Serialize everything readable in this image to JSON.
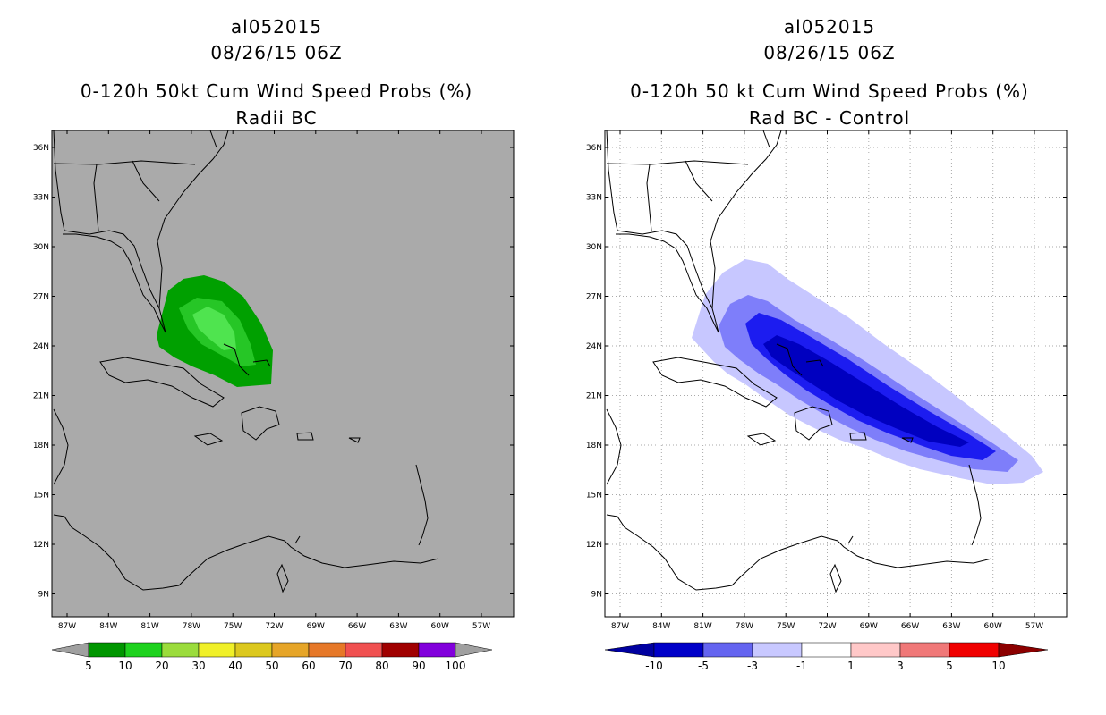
{
  "colors": {
    "land_gray": "#aaaaaa",
    "green_dark": "#00a000",
    "green_mid": "#26c626",
    "green_light": "#4fe44f",
    "blue_1": "#c7c7ff",
    "blue_3": "#7e7efa",
    "blue_5": "#1c1cf0",
    "blue_10": "#0000c0"
  },
  "lat_labels": [
    "36N",
    "33N",
    "30N",
    "27N",
    "24N",
    "21N",
    "18N",
    "15N",
    "12N",
    "9N"
  ],
  "lon_labels": [
    "87W",
    "84W",
    "81W",
    "78W",
    "75W",
    "72W",
    "69W",
    "66W",
    "63W",
    "60W",
    "57W"
  ],
  "left": {
    "title1": "al052015",
    "title2": "08/26/15 06Z",
    "title3": "0-120h 50kt Cum Wind Speed Probs (%)",
    "title4": "Radii BC",
    "colorbar": {
      "labels": [
        "5",
        "10",
        "20",
        "30",
        "40",
        "50",
        "60",
        "70",
        "80",
        "90",
        "100"
      ],
      "colors": [
        "#009600",
        "#1ed21e",
        "#9bdc3c",
        "#f0f028",
        "#dcc81e",
        "#e6a528",
        "#e67828",
        "#f05050",
        "#a00000",
        "#8200dc"
      ],
      "end_color": "#a0a0a0"
    }
  },
  "right": {
    "title1": "al052015",
    "title2": "08/26/15 06Z",
    "title3": "0-120h 50 kt Cum Wind Speed Probs (%)",
    "title4": "Rad BC - Control",
    "colorbar": {
      "labels": [
        "-10",
        "-5",
        "-3",
        "-1",
        "1",
        "3",
        "5",
        "10"
      ],
      "colors": [
        "#0000c8",
        "#6464f0",
        "#c8c8ff",
        "#ffffff",
        "#ffc8c8",
        "#f07878",
        "#f00000"
      ],
      "start_color": "#0000a0",
      "end_color": "#8c0000"
    }
  }
}
